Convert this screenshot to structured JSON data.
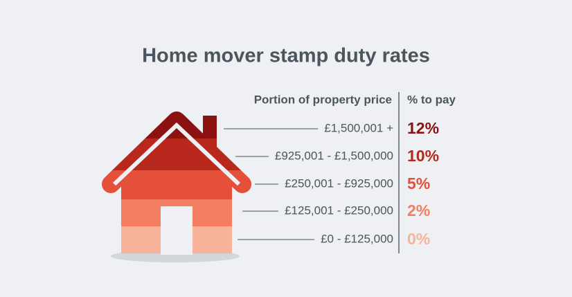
{
  "title": "Home mover stamp duty rates",
  "table": {
    "headers": [
      "Portion of property price",
      "% to pay"
    ],
    "rows": [
      {
        "band": "£1,500,001 +",
        "rate": "12%",
        "color": "#8c1212"
      },
      {
        "band": "£925,001 - £1,500,000",
        "rate": "10%",
        "color": "#b8281c"
      },
      {
        "band": "£250,001 - £925,000",
        "rate": "5%",
        "color": "#e5503a"
      },
      {
        "band": "£125,001 - £250,000",
        "rate": "2%",
        "color": "#f27d63"
      },
      {
        "band": "£0 - £125,000",
        "rate": "0%",
        "color": "#f8b39b"
      }
    ]
  }
}
